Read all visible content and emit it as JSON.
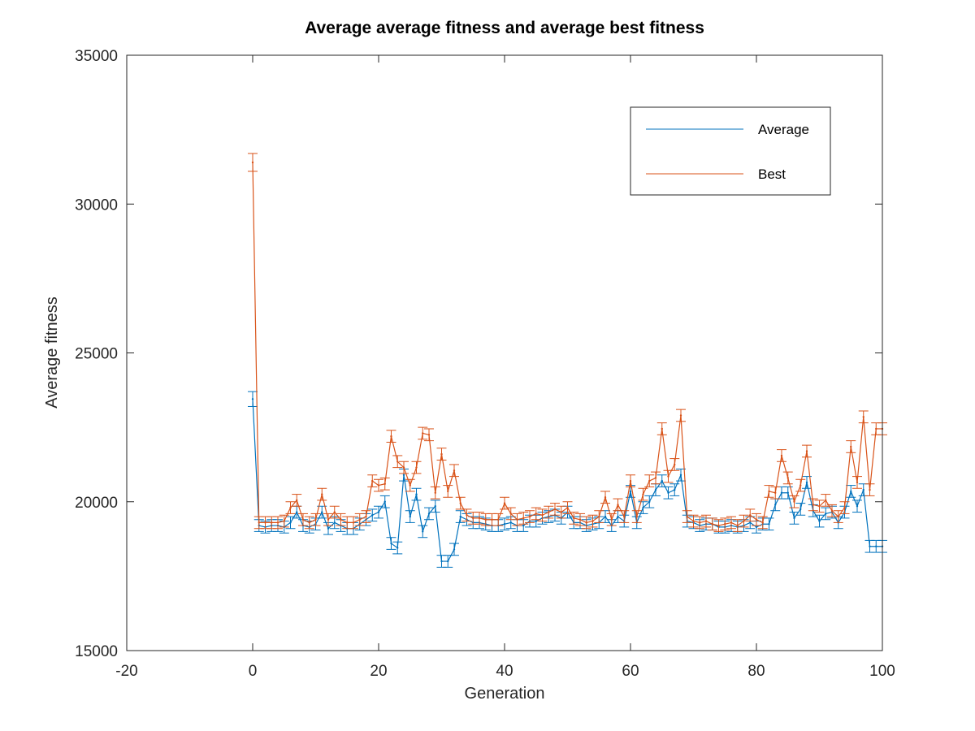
{
  "chart_data": {
    "type": "line",
    "title": "Average average fitness and average best fitness",
    "xlabel": "Generation",
    "ylabel": "Average fitness",
    "xlim": [
      -20,
      100
    ],
    "ylim": [
      15000,
      35000
    ],
    "x_ticks": [
      "-20",
      "0",
      "20",
      "40",
      "60",
      "80",
      "100"
    ],
    "y_ticks": [
      "15000",
      "20000",
      "25000",
      "30000",
      "35000"
    ],
    "grid": false,
    "legend_position": "top-right",
    "error_bars": true,
    "series": [
      {
        "name": "Average",
        "color": "#0072BD",
        "x": [
          0,
          1,
          2,
          3,
          4,
          5,
          6,
          7,
          8,
          9,
          10,
          11,
          12,
          13,
          14,
          15,
          16,
          17,
          18,
          19,
          20,
          21,
          22,
          23,
          24,
          25,
          26,
          27,
          28,
          29,
          30,
          31,
          32,
          33,
          34,
          35,
          36,
          37,
          38,
          39,
          40,
          41,
          42,
          43,
          44,
          45,
          46,
          47,
          48,
          49,
          50,
          51,
          52,
          53,
          54,
          55,
          56,
          57,
          58,
          59,
          60,
          61,
          62,
          63,
          64,
          65,
          66,
          67,
          68,
          69,
          70,
          71,
          72,
          73,
          74,
          75,
          76,
          77,
          78,
          79,
          80,
          81,
          82,
          83,
          84,
          85,
          86,
          87,
          88,
          89,
          90,
          91,
          92,
          93,
          94,
          95,
          96,
          97,
          98,
          99,
          100
        ],
        "values": [
          23450,
          19200,
          19150,
          19200,
          19200,
          19150,
          19300,
          19650,
          19200,
          19150,
          19250,
          19650,
          19100,
          19300,
          19200,
          19100,
          19100,
          19250,
          19400,
          19550,
          19650,
          20000,
          18600,
          18450,
          20900,
          19500,
          20250,
          19000,
          19600,
          19850,
          18000,
          18000,
          18400,
          19500,
          19400,
          19300,
          19300,
          19250,
          19200,
          19200,
          19250,
          19300,
          19200,
          19200,
          19350,
          19350,
          19450,
          19500,
          19550,
          19450,
          19650,
          19300,
          19300,
          19200,
          19250,
          19300,
          19500,
          19200,
          19500,
          19350,
          20350,
          19300,
          19800,
          20000,
          20400,
          20700,
          20300,
          20400,
          20900,
          19350,
          19300,
          19200,
          19250,
          19250,
          19150,
          19150,
          19200,
          19150,
          19200,
          19300,
          19150,
          19250,
          19250,
          19900,
          20300,
          20300,
          19450,
          19750,
          20650,
          19700,
          19350,
          19600,
          19650,
          19300,
          19650,
          20350,
          19850,
          20400,
          18500,
          18500,
          18500
        ],
        "err": [
          250,
          200,
          200,
          200,
          200,
          200,
          200,
          200,
          200,
          200,
          200,
          200,
          200,
          200,
          200,
          200,
          200,
          200,
          200,
          200,
          200,
          200,
          200,
          200,
          200,
          200,
          200,
          200,
          200,
          200,
          200,
          200,
          200,
          200,
          200,
          200,
          200,
          200,
          200,
          200,
          200,
          200,
          200,
          200,
          200,
          200,
          200,
          200,
          200,
          200,
          200,
          200,
          200,
          200,
          200,
          200,
          200,
          200,
          200,
          200,
          200,
          200,
          200,
          200,
          200,
          200,
          200,
          200,
          200,
          200,
          200,
          200,
          200,
          200,
          200,
          200,
          200,
          200,
          200,
          200,
          200,
          200,
          200,
          200,
          200,
          200,
          200,
          200,
          200,
          200,
          200,
          200,
          200,
          200,
          200,
          200,
          200,
          200,
          200,
          200,
          200
        ]
      },
      {
        "name": "Best",
        "color": "#D95319",
        "x": [
          0,
          1,
          2,
          3,
          4,
          5,
          6,
          7,
          8,
          9,
          10,
          11,
          12,
          13,
          14,
          15,
          16,
          17,
          18,
          19,
          20,
          21,
          22,
          23,
          24,
          25,
          26,
          27,
          28,
          29,
          30,
          31,
          32,
          33,
          34,
          35,
          36,
          37,
          38,
          39,
          40,
          41,
          42,
          43,
          44,
          45,
          46,
          47,
          48,
          49,
          50,
          51,
          52,
          53,
          54,
          55,
          56,
          57,
          58,
          59,
          60,
          61,
          62,
          63,
          64,
          65,
          66,
          67,
          68,
          69,
          70,
          71,
          72,
          73,
          74,
          75,
          76,
          77,
          78,
          79,
          80,
          81,
          82,
          83,
          84,
          85,
          86,
          87,
          88,
          89,
          90,
          91,
          92,
          93,
          94,
          95,
          96,
          97,
          98,
          99,
          100
        ],
        "values": [
          31400,
          19300,
          19300,
          19300,
          19300,
          19350,
          19800,
          20050,
          19400,
          19300,
          19400,
          20250,
          19400,
          19650,
          19400,
          19300,
          19300,
          19400,
          19500,
          20700,
          20550,
          20600,
          22200,
          21350,
          21150,
          20550,
          21150,
          22300,
          22250,
          20300,
          21600,
          20350,
          21050,
          19950,
          19550,
          19450,
          19450,
          19400,
          19400,
          19400,
          19950,
          19600,
          19400,
          19450,
          19500,
          19600,
          19550,
          19650,
          19750,
          19650,
          19800,
          19450,
          19400,
          19300,
          19350,
          19500,
          20150,
          19400,
          19900,
          19500,
          20700,
          19500,
          20250,
          20700,
          20800,
          22450,
          20850,
          21250,
          22900,
          19500,
          19350,
          19300,
          19350,
          19250,
          19200,
          19250,
          19300,
          19200,
          19350,
          19550,
          19400,
          19300,
          20350,
          20300,
          21550,
          20800,
          20000,
          20550,
          21700,
          19900,
          19850,
          20050,
          19700,
          19500,
          19800,
          21850,
          20650,
          22850,
          20400,
          22450,
          22450
        ],
        "err": [
          300,
          200,
          200,
          200,
          200,
          200,
          200,
          200,
          200,
          200,
          200,
          200,
          200,
          200,
          200,
          200,
          200,
          200,
          200,
          200,
          200,
          200,
          200,
          200,
          200,
          200,
          200,
          200,
          200,
          200,
          200,
          200,
          200,
          200,
          200,
          200,
          200,
          200,
          200,
          200,
          200,
          200,
          200,
          200,
          200,
          200,
          200,
          200,
          200,
          200,
          200,
          200,
          200,
          200,
          200,
          200,
          200,
          200,
          200,
          200,
          200,
          200,
          200,
          200,
          200,
          200,
          200,
          200,
          200,
          200,
          200,
          200,
          200,
          200,
          200,
          200,
          200,
          200,
          200,
          200,
          200,
          200,
          200,
          200,
          200,
          200,
          200,
          200,
          200,
          200,
          200,
          200,
          200,
          200,
          200,
          200,
          200,
          200,
          200,
          200,
          200
        ]
      }
    ]
  }
}
